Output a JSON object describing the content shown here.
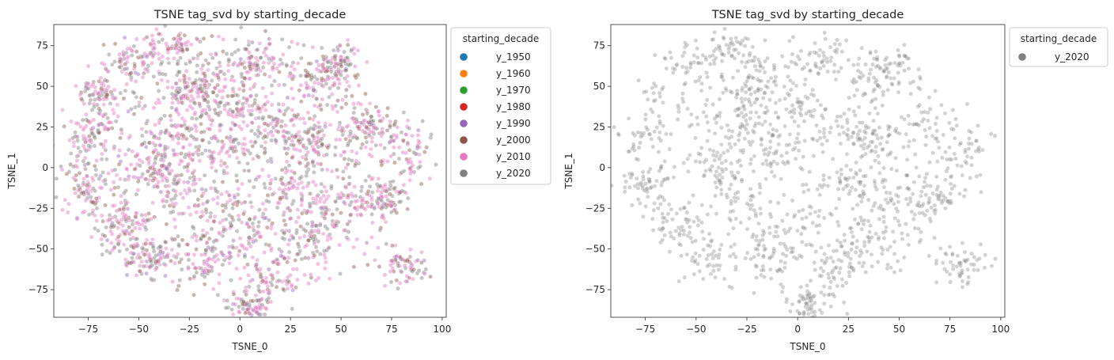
{
  "chart_data": [
    {
      "type": "scatter",
      "title": "TSNE tag_svd by starting_decade",
      "xlabel": "TSNE_0",
      "ylabel": "TSNE_1",
      "xlim": [
        -92,
        102
      ],
      "ylim": [
        -92,
        88
      ],
      "xticks": [
        -75,
        -50,
        -25,
        0,
        25,
        50,
        75,
        100
      ],
      "yticks": [
        -75,
        -50,
        -25,
        0,
        25,
        50,
        75
      ],
      "legend": {
        "title": "starting_decade",
        "placement": "outside-upper-right",
        "entries": [
          "y_1950",
          "y_1960",
          "y_1970",
          "y_1980",
          "y_1990",
          "y_2000",
          "y_2010",
          "y_2020"
        ],
        "colors": [
          "#1f77b4",
          "#ff7f0e",
          "#2ca02c",
          "#d62728",
          "#9467bd",
          "#8c564b",
          "#e377c2",
          "#7f7f7f"
        ]
      },
      "series": [
        {
          "name": "y_2010",
          "color": "#e377c2",
          "n_points_approx": 1300
        },
        {
          "name": "y_2000",
          "color": "#8c564b",
          "n_points_approx": 500
        },
        {
          "name": "y_2020",
          "color": "#7f7f7f",
          "n_points_approx": 900
        },
        {
          "name": "y_1990",
          "color": "#9467bd",
          "n_points_approx": 120
        }
      ],
      "clusters": [
        [
          -30,
          20,
          7,
          6
        ],
        [
          -25,
          -15,
          8,
          7
        ],
        [
          -15,
          55,
          7,
          8
        ],
        [
          0,
          40,
          6,
          6
        ],
        [
          20,
          25,
          8,
          7
        ],
        [
          15,
          -70,
          5,
          8
        ],
        [
          -45,
          -55,
          6,
          5
        ],
        [
          -55,
          65,
          6,
          5
        ],
        [
          40,
          55,
          6,
          6
        ],
        [
          50,
          65,
          4,
          4
        ],
        [
          -75,
          -10,
          5,
          6
        ],
        [
          -75,
          20,
          6,
          6
        ],
        [
          85,
          10,
          5,
          8
        ],
        [
          80,
          -60,
          6,
          5
        ],
        [
          5,
          -85,
          4,
          3
        ],
        [
          -40,
          0,
          6,
          6
        ],
        [
          0,
          -35,
          7,
          7
        ],
        [
          45,
          -25,
          6,
          7
        ],
        [
          -10,
          10,
          6,
          6
        ],
        [
          25,
          -10,
          6,
          6
        ],
        [
          -15,
          -55,
          6,
          6
        ],
        [
          60,
          25,
          6,
          6
        ],
        [
          -70,
          45,
          4,
          4
        ],
        [
          35,
          15,
          5,
          5
        ],
        [
          -60,
          -35,
          6,
          6
        ],
        [
          10,
          65,
          5,
          5
        ],
        [
          -35,
          75,
          5,
          5
        ],
        [
          70,
          -20,
          5,
          5
        ],
        [
          -25,
          45,
          6,
          5
        ],
        [
          35,
          -45,
          6,
          6
        ]
      ],
      "alpha": 0.45,
      "marker_edgecolor": "#ffffff"
    },
    {
      "type": "scatter",
      "title": "TSNE tag_svd by starting_decade",
      "xlabel": "TSNE_0",
      "ylabel": "TSNE_1",
      "xlim": [
        -92,
        102
      ],
      "ylim": [
        -92,
        88
      ],
      "xticks": [
        -75,
        -50,
        -25,
        0,
        25,
        50,
        75,
        100
      ],
      "yticks": [
        -75,
        -50,
        -25,
        0,
        25,
        50,
        75
      ],
      "legend": {
        "title": "starting_decade",
        "placement": "outside-upper-right",
        "entries": [
          "y_2020"
        ],
        "colors": [
          "#7f7f7f"
        ]
      },
      "series": [
        {
          "name": "y_2020",
          "color": "#7f7f7f",
          "n_points_approx": 1600
        }
      ],
      "clusters": [
        [
          -30,
          20,
          7,
          6
        ],
        [
          -25,
          -15,
          8,
          7
        ],
        [
          -15,
          55,
          7,
          8
        ],
        [
          0,
          40,
          6,
          6
        ],
        [
          20,
          25,
          8,
          7
        ],
        [
          15,
          -70,
          5,
          8
        ],
        [
          -45,
          -55,
          6,
          5
        ],
        [
          -55,
          65,
          6,
          5
        ],
        [
          40,
          55,
          6,
          6
        ],
        [
          50,
          65,
          4,
          4
        ],
        [
          -75,
          -10,
          5,
          6
        ],
        [
          -75,
          20,
          6,
          6
        ],
        [
          85,
          10,
          5,
          8
        ],
        [
          80,
          -60,
          6,
          5
        ],
        [
          5,
          -85,
          4,
          3
        ],
        [
          -40,
          0,
          6,
          6
        ],
        [
          0,
          -35,
          7,
          7
        ],
        [
          45,
          -25,
          6,
          7
        ],
        [
          -10,
          10,
          6,
          6
        ],
        [
          25,
          -10,
          6,
          6
        ],
        [
          -15,
          -55,
          6,
          6
        ],
        [
          60,
          25,
          6,
          6
        ],
        [
          -70,
          45,
          4,
          4
        ],
        [
          35,
          15,
          5,
          5
        ],
        [
          -60,
          -35,
          6,
          6
        ],
        [
          10,
          65,
          5,
          5
        ],
        [
          -35,
          75,
          5,
          5
        ],
        [
          70,
          -20,
          5,
          5
        ],
        [
          -25,
          45,
          6,
          5
        ],
        [
          35,
          -45,
          6,
          6
        ]
      ],
      "alpha": 0.35,
      "marker_edgecolor": "#ffffff"
    }
  ]
}
